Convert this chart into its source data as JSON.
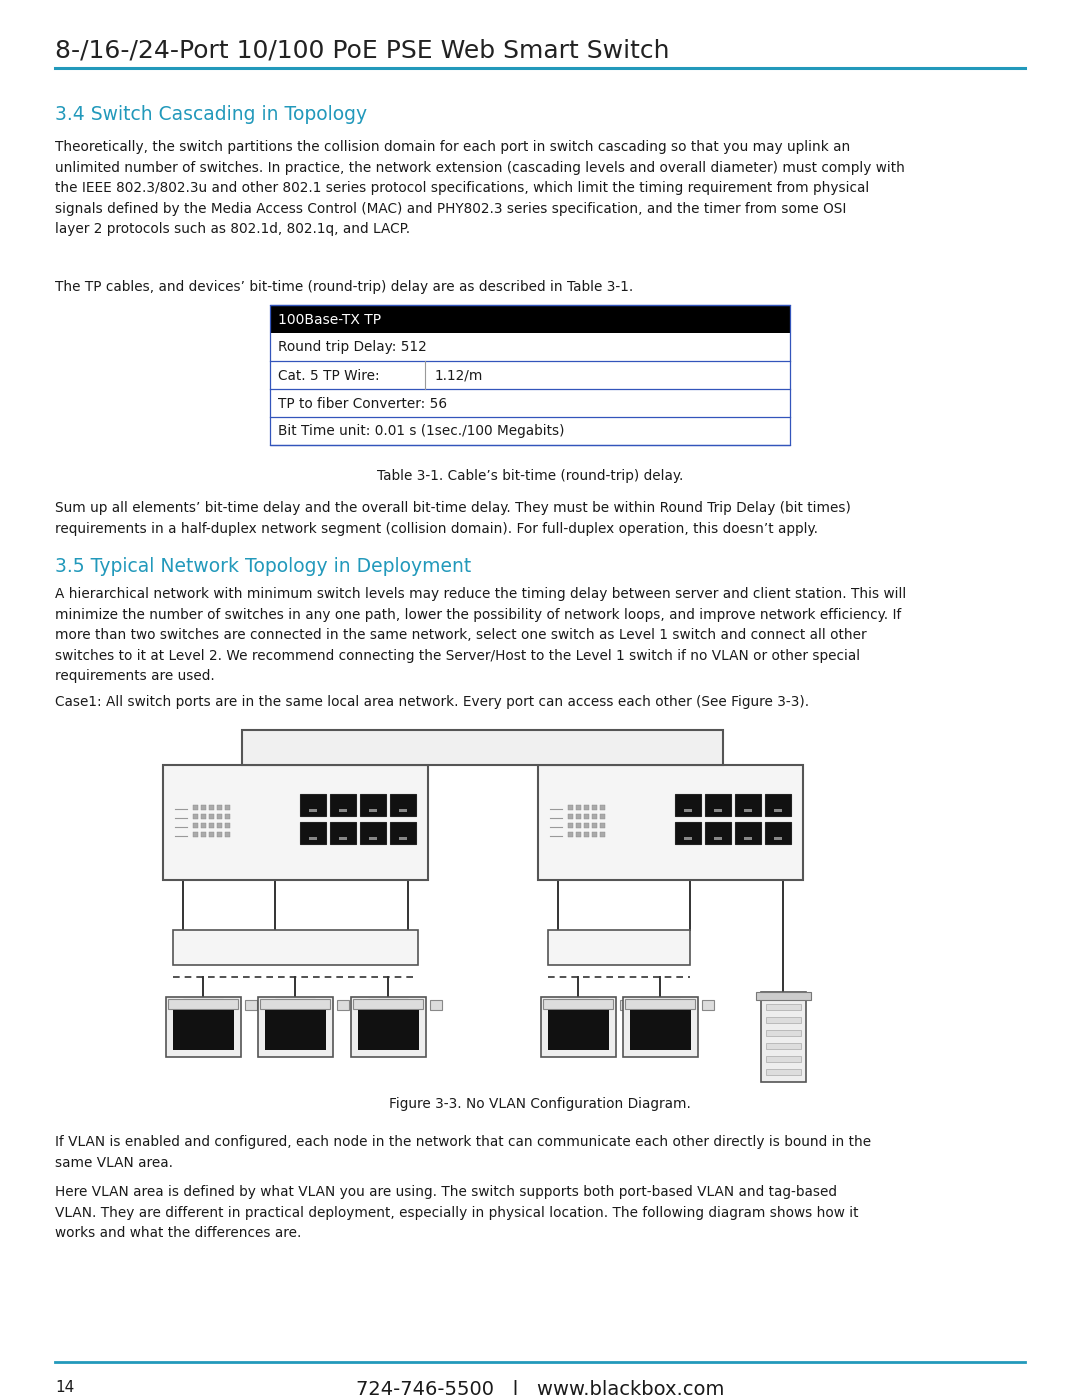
{
  "page_title": "8-/16-/24-Port 10/100 PoE PSE Web Smart Switch",
  "top_line_color": "#2299bb",
  "section1_title": "3.4 Switch Cascading in Topology",
  "section1_color": "#2299bb",
  "section1_body": "Theoretically, the switch partitions the collision domain for each port in switch cascading so that you may uplink an\nunlimited number of switches. In practice, the network extension (cascading levels and overall diameter) must comply with\nthe IEEE 802.3/802.3u and other 802.1 series protocol specifications, which limit the timing requirement from physical\nsignals defined by the Media Access Control (MAC) and PHY802.3 series specification, and the timer from some OSI\nlayer 2 protocols such as 802.1d, 802.1q, and LACP.",
  "tp_cable_text": "The TP cables, and devices’ bit-time (round-trip) delay are as described in Table 3-1.",
  "table_header": "100Base-TX TP",
  "table_caption": "Table 3-1. Cable’s bit-time (round-trip) delay.",
  "section2_para": "Sum up all elements’ bit-time delay and the overall bit-time delay. They must be within Round Trip Delay (bit times)\nrequirements in a half-duplex network segment (collision domain). For full-duplex operation, this doesn’t apply.",
  "section2_title": "3.5 Typical Network Topology in Deployment",
  "section2_color": "#2299bb",
  "section2_body": "A hierarchical network with minimum switch levels may reduce the timing delay between server and client station. This will\nminimize the number of switches in any one path, lower the possibility of network loops, and improve network efficiency. If\nmore than two switches are connected in the same network, select one switch as Level 1 switch and connect all other\nswitches to it at Level 2. We recommend connecting the Server/Host to the Level 1 switch if no VLAN or other special\nrequirements are used.",
  "case1_text": "Case1: All switch ports are in the same local area network. Every port can access each other (See Figure 3-3).",
  "figure_caption": "Figure 3-3. No VLAN Configuration Diagram.",
  "section3_body1": "If VLAN is enabled and configured, each node in the network that can communicate each other directly is bound in the\nsame VLAN area.",
  "section3_body2": "Here VLAN area is defined by what VLAN you are using. The switch supports both port-based VLAN and tag-based\nVLAN. They are different in practical deployment, especially in physical location. The following diagram shows how it\nworks and what the differences are.",
  "footer_line_color": "#2299bb",
  "footer_page": "14",
  "footer_phone": "724-746-5500",
  "footer_sep": "l",
  "footer_url": "www.blackbox.com",
  "bg_color": "#ffffff",
  "text_color": "#1a1a1a"
}
